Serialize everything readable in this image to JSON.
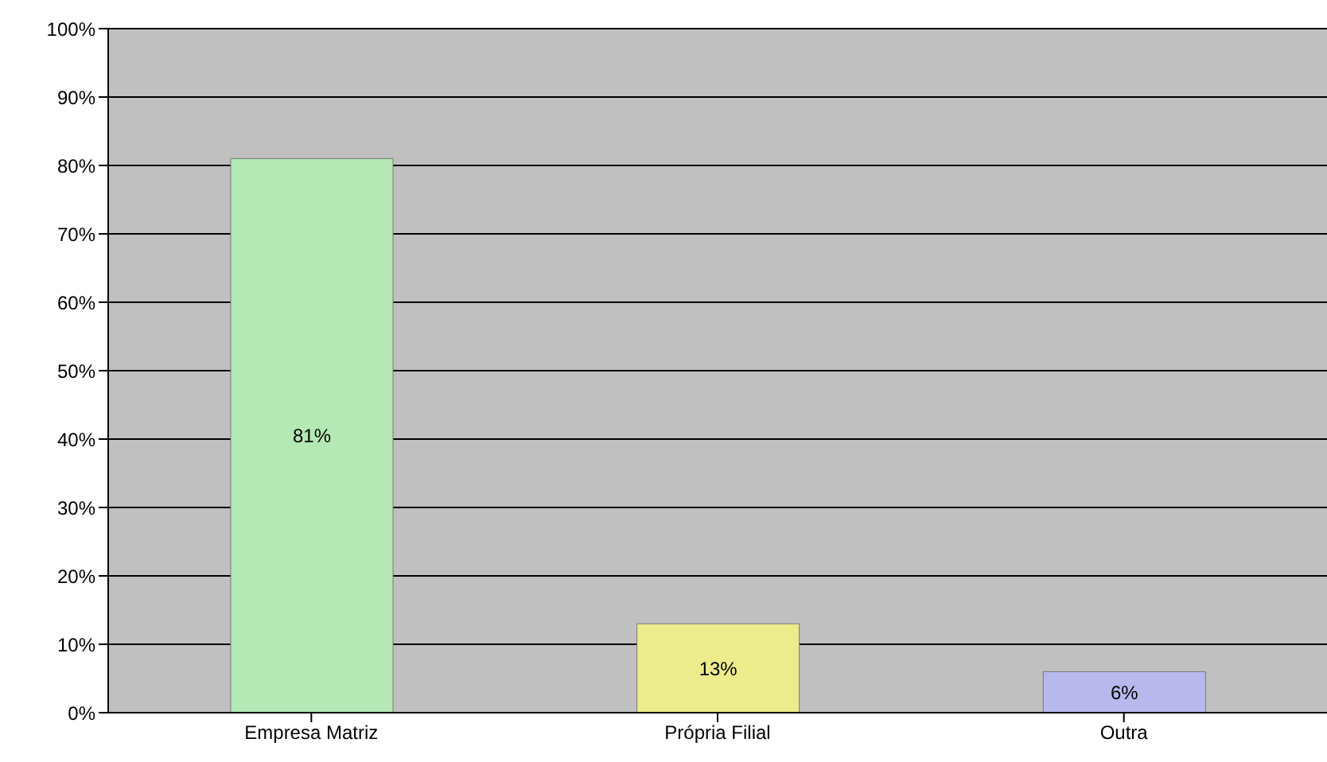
{
  "chart_data": {
    "type": "bar",
    "categories": [
      "Empresa Matriz",
      "Própria Filial",
      "Outra"
    ],
    "values": [
      81,
      13,
      6
    ],
    "colors": [
      "#b4e8b4",
      "#ecec8c",
      "#b8b8ec"
    ],
    "value_labels": [
      "81%",
      "13%",
      "6%"
    ],
    "ylim": [
      0,
      100
    ],
    "yticks": [
      {
        "value": 0,
        "label": "0%"
      },
      {
        "value": 10,
        "label": "10%"
      },
      {
        "value": 20,
        "label": "20%"
      },
      {
        "value": 30,
        "label": "30%"
      },
      {
        "value": 40,
        "label": "40%"
      },
      {
        "value": 50,
        "label": "50%"
      },
      {
        "value": 60,
        "label": "60%"
      },
      {
        "value": 70,
        "label": "70%"
      },
      {
        "value": 80,
        "label": "80%"
      },
      {
        "value": 90,
        "label": "90%"
      },
      {
        "value": 100,
        "label": "100%"
      }
    ],
    "grid": "y",
    "legend": false
  }
}
